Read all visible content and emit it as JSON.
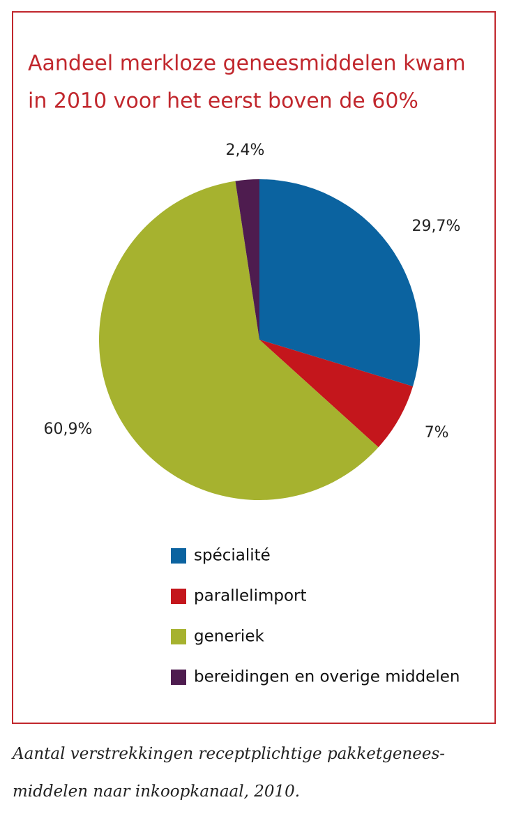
{
  "chart_data": {
    "type": "pie",
    "title": [
      "Aandeel merkloze geneesmiddelen kwam",
      "in 2010 voor het eerst boven de 60%"
    ],
    "categories": [
      "spécialité",
      "parallelimport",
      "generiek",
      "bereidingen en overige middelen"
    ],
    "values": [
      29.7,
      7,
      60.9,
      2.4
    ],
    "value_labels": [
      "29,7%",
      "7%",
      "60,9%",
      "2,4%"
    ],
    "colors": [
      "#0b63a0",
      "#c4161c",
      "#a6b22f",
      "#4e1c4f"
    ],
    "caption": [
      "Aantal verstrekkingen receptplichtige pakketgenees-",
      "middelen naar inkoopkanaal, 2010."
    ]
  }
}
